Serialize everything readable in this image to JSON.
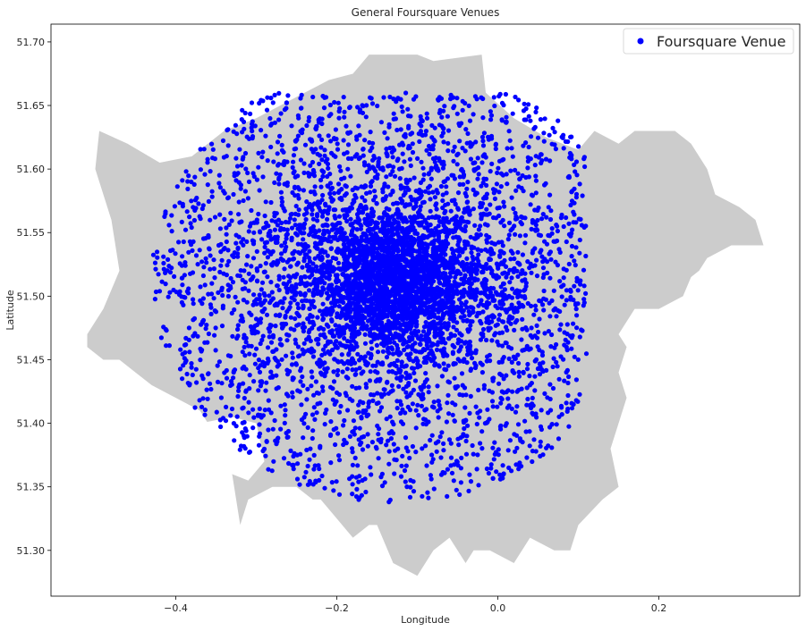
{
  "chart_data": {
    "type": "scatter",
    "title": "General Foursquare Venues",
    "xlabel": "Longitude",
    "ylabel": "Latitude",
    "xlim": [
      -0.555,
      0.375
    ],
    "ylim": [
      51.264,
      51.714
    ],
    "x_ticks": [
      -0.4,
      -0.2,
      0.0,
      0.2
    ],
    "x_tick_labels": [
      "−0.4",
      "−0.2",
      "0.0",
      "0.2"
    ],
    "y_ticks": [
      51.3,
      51.35,
      51.4,
      51.45,
      51.5,
      51.55,
      51.6,
      51.65,
      51.7
    ],
    "y_tick_labels": [
      "51.30",
      "51.35",
      "51.40",
      "51.45",
      "51.50",
      "51.55",
      "51.60",
      "51.65",
      "51.70"
    ],
    "grid": false,
    "legend_position": "top-right",
    "series": [
      {
        "name": "Foursquare Venue",
        "color": "#0000ff",
        "marker": "circle",
        "center": [
          -0.13,
          51.512
        ],
        "approx_extent": {
          "lon": [
            -0.47,
            0.11
          ],
          "lat": [
            51.315,
            51.66
          ]
        }
      }
    ],
    "background_map": {
      "color": "#cccccc",
      "region": "Greater London boundary",
      "outline": [
        [
          -0.51,
          51.47
        ],
        [
          -0.49,
          51.49
        ],
        [
          -0.47,
          51.52
        ],
        [
          -0.48,
          51.56
        ],
        [
          -0.5,
          51.6
        ],
        [
          -0.495,
          51.63
        ],
        [
          -0.46,
          51.62
        ],
        [
          -0.42,
          51.605
        ],
        [
          -0.38,
          51.61
        ],
        [
          -0.34,
          51.63
        ],
        [
          -0.3,
          51.64
        ],
        [
          -0.24,
          51.66
        ],
        [
          -0.21,
          51.67
        ],
        [
          -0.18,
          51.675
        ],
        [
          -0.16,
          51.69
        ],
        [
          -0.13,
          51.69
        ],
        [
          -0.1,
          51.69
        ],
        [
          -0.08,
          51.685
        ],
        [
          -0.02,
          51.69
        ],
        [
          -0.015,
          51.66
        ],
        [
          0.02,
          51.64
        ],
        [
          0.06,
          51.625
        ],
        [
          0.1,
          51.615
        ],
        [
          0.12,
          51.63
        ],
        [
          0.15,
          51.62
        ],
        [
          0.17,
          51.63
        ],
        [
          0.22,
          51.63
        ],
        [
          0.24,
          51.62
        ],
        [
          0.26,
          51.6
        ],
        [
          0.27,
          51.58
        ],
        [
          0.3,
          51.57
        ],
        [
          0.32,
          51.56
        ],
        [
          0.33,
          51.54
        ],
        [
          0.29,
          51.54
        ],
        [
          0.26,
          51.53
        ],
        [
          0.25,
          51.52
        ],
        [
          0.24,
          51.515
        ],
        [
          0.23,
          51.5
        ],
        [
          0.2,
          51.49
        ],
        [
          0.17,
          51.49
        ],
        [
          0.15,
          51.47
        ],
        [
          0.16,
          51.46
        ],
        [
          0.15,
          51.44
        ],
        [
          0.16,
          51.42
        ],
        [
          0.15,
          51.4
        ],
        [
          0.14,
          51.38
        ],
        [
          0.15,
          51.35
        ],
        [
          0.13,
          51.34
        ],
        [
          0.1,
          51.32
        ],
        [
          0.09,
          51.3
        ],
        [
          0.07,
          51.3
        ],
        [
          0.04,
          51.31
        ],
        [
          0.02,
          51.29
        ],
        [
          -0.01,
          51.3
        ],
        [
          -0.03,
          51.3
        ],
        [
          -0.04,
          51.29
        ],
        [
          -0.06,
          51.31
        ],
        [
          -0.08,
          51.3
        ],
        [
          -0.1,
          51.28
        ],
        [
          -0.13,
          51.29
        ],
        [
          -0.15,
          51.32
        ],
        [
          -0.16,
          51.32
        ],
        [
          -0.18,
          51.31
        ],
        [
          -0.22,
          51.34
        ],
        [
          -0.23,
          51.34
        ],
        [
          -0.25,
          51.35
        ],
        [
          -0.28,
          51.35
        ],
        [
          -0.31,
          51.34
        ],
        [
          -0.32,
          51.32
        ],
        [
          -0.33,
          51.36
        ],
        [
          -0.35,
          51.39
        ],
        [
          -0.37,
          51.41
        ],
        [
          -0.4,
          51.42
        ],
        [
          -0.43,
          51.43
        ],
        [
          -0.45,
          51.44
        ],
        [
          -0.47,
          51.45
        ],
        [
          -0.49,
          51.45
        ],
        [
          -0.51,
          51.46
        ]
      ]
    }
  }
}
